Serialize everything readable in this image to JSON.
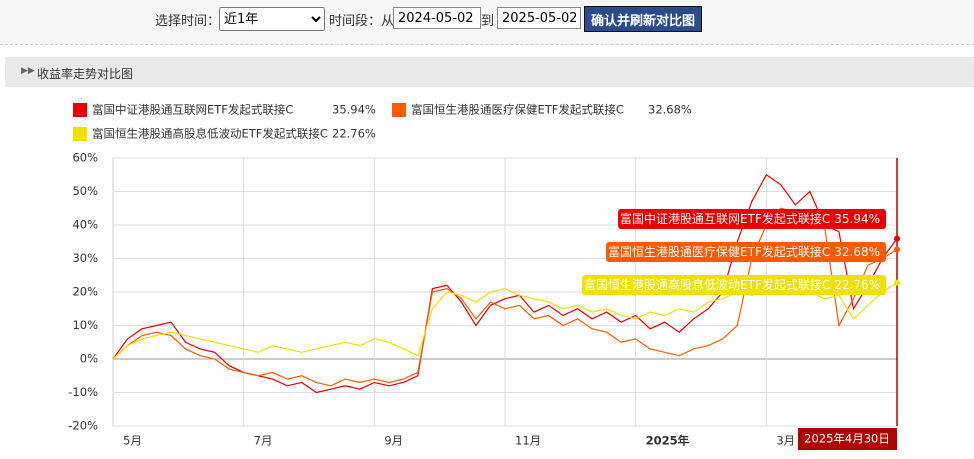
{
  "toolbar": {
    "time_label": "选择时间：",
    "period_option": "近1年",
    "range_label": "时间段：从",
    "start_date": "2024-05-02",
    "to_label": "到",
    "end_date": "2025-05-02",
    "button": "确认并刷新对比图"
  },
  "section": {
    "title": "收益率走势对比图"
  },
  "chart_data": {
    "type": "line",
    "crosshair_label": "2025年4月30日",
    "categories": [
      "5月",
      null,
      null,
      null,
      null,
      null,
      null,
      null,
      null,
      "7月",
      null,
      null,
      null,
      null,
      null,
      null,
      null,
      null,
      "9月",
      null,
      null,
      null,
      null,
      null,
      null,
      null,
      null,
      "11月",
      null,
      null,
      null,
      null,
      null,
      null,
      null,
      null,
      "2025年",
      null,
      null,
      null,
      null,
      null,
      null,
      null,
      null,
      "3月",
      null,
      null,
      null,
      null,
      null,
      null,
      null,
      null,
      null
    ],
    "series": [
      {
        "name": "富国中证港股通互联网ETF发起式联接C",
        "color": "#e60000",
        "values": [
          0,
          6,
          9,
          10,
          11,
          5,
          3,
          2,
          -2,
          -4,
          -5,
          -6,
          -8,
          -7,
          -10,
          -9,
          -8,
          -9,
          -7,
          -8,
          -7,
          -5,
          21,
          22,
          17,
          10,
          16,
          18,
          19,
          14,
          16,
          13,
          15,
          12,
          14,
          11,
          13,
          9,
          11,
          8,
          12,
          15,
          20,
          35,
          47,
          55,
          52,
          46,
          50,
          40,
          38,
          15,
          22,
          30,
          35.94
        ],
        "value_labels": [
          null,
          null,
          null,
          null,
          null,
          null,
          null,
          null,
          null,
          null,
          null,
          null,
          null,
          null,
          null,
          null,
          null,
          null,
          null,
          null,
          null,
          null,
          null,
          null,
          null,
          null,
          null,
          null,
          null,
          null,
          null,
          null,
          null,
          null,
          null,
          null,
          null,
          null,
          null,
          null,
          null,
          null,
          null,
          null,
          null,
          null,
          null,
          null,
          null,
          null,
          null,
          null,
          null,
          null,
          "35.94%"
        ]
      },
      {
        "name": "富国恒生港股通医疗保健ETF发起式联接C",
        "color": "#ff5a00",
        "values": [
          0,
          4,
          7,
          8,
          7,
          3,
          1,
          0,
          -3,
          -4,
          -5,
          -4,
          -6,
          -5,
          -7,
          -8,
          -6,
          -7,
          -6,
          -7,
          -6,
          -4,
          20,
          21,
          18,
          12,
          17,
          15,
          16,
          12,
          13,
          10,
          12,
          9,
          8,
          5,
          6,
          3,
          2,
          1,
          3,
          4,
          6,
          10,
          30,
          40,
          45,
          44,
          42,
          40,
          10,
          18,
          28,
          30,
          32.68
        ],
        "value_labels": [
          null,
          null,
          null,
          null,
          null,
          null,
          null,
          null,
          null,
          null,
          null,
          null,
          null,
          null,
          null,
          null,
          null,
          null,
          null,
          null,
          null,
          null,
          null,
          null,
          null,
          null,
          null,
          null,
          null,
          null,
          null,
          null,
          null,
          null,
          null,
          null,
          null,
          null,
          null,
          null,
          null,
          null,
          null,
          null,
          null,
          null,
          null,
          null,
          null,
          null,
          null,
          null,
          null,
          null,
          "32.68%"
        ]
      },
      {
        "name": "富国恒生港股通高股息低波动ETF发起式联接C",
        "color": "#f0e000",
        "values": [
          0,
          4,
          6,
          7,
          8,
          7,
          6,
          5,
          4,
          3,
          2,
          4,
          3,
          2,
          3,
          4,
          5,
          4,
          6,
          5,
          3,
          1,
          15,
          20,
          19,
          17,
          20,
          21,
          19,
          18,
          17,
          15,
          16,
          14,
          15,
          13,
          12,
          14,
          13,
          15,
          14,
          17,
          18,
          20,
          19,
          21,
          20,
          22,
          20,
          18,
          19,
          12,
          16,
          20,
          22.76
        ],
        "value_labels": [
          null,
          null,
          null,
          null,
          null,
          null,
          null,
          null,
          null,
          null,
          null,
          null,
          null,
          null,
          null,
          null,
          null,
          null,
          null,
          null,
          null,
          null,
          null,
          null,
          null,
          null,
          null,
          null,
          null,
          null,
          null,
          null,
          null,
          null,
          null,
          null,
          null,
          null,
          null,
          null,
          null,
          null,
          null,
          null,
          null,
          null,
          null,
          null,
          null,
          null,
          null,
          null,
          null,
          null,
          "22.76%"
        ]
      }
    ],
    "ylim": [
      -20,
      60
    ],
    "yticks": [
      {
        "value": -20,
        "label": "-20%"
      },
      {
        "value": -10,
        "label": "-10%"
      },
      {
        "value": 0,
        "label": "0%"
      },
      {
        "value": 10,
        "label": "10%"
      },
      {
        "value": 20,
        "label": "20%"
      },
      {
        "value": 30,
        "label": "30%"
      },
      {
        "value": 40,
        "label": "40%"
      },
      {
        "value": 50,
        "label": "50%"
      },
      {
        "value": 60,
        "label": "60%"
      }
    ],
    "grid": true
  }
}
